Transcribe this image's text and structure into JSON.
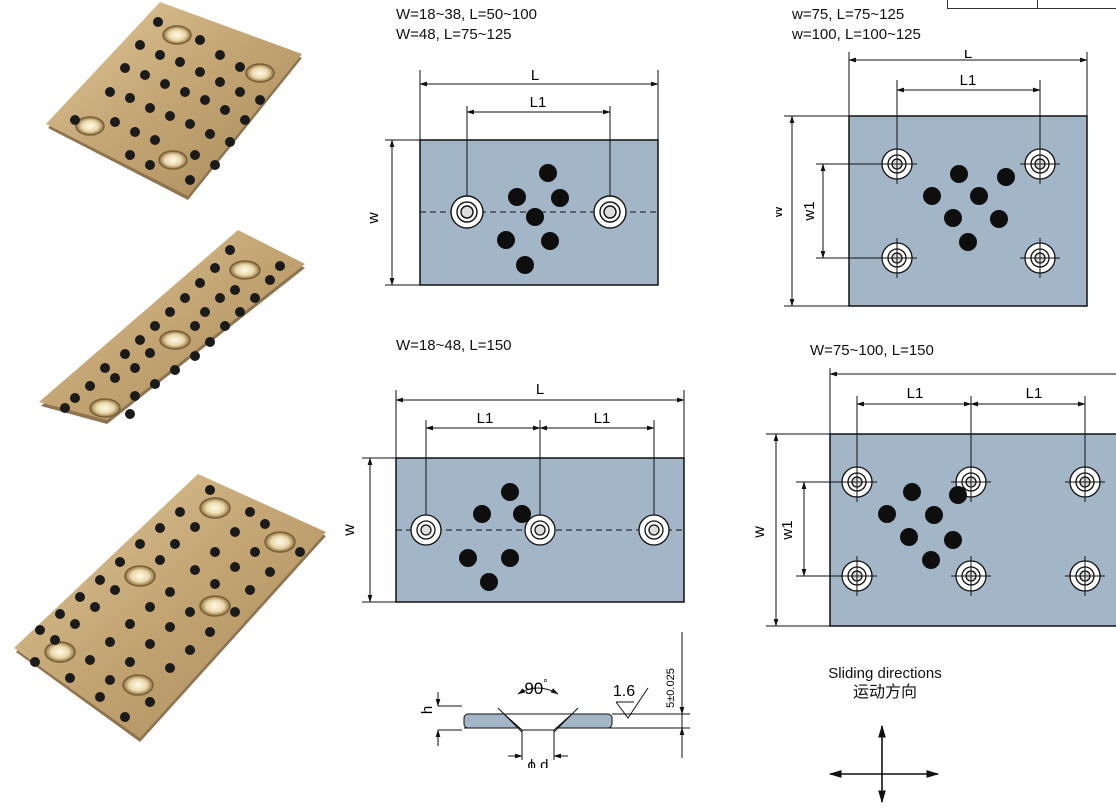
{
  "captions": {
    "tl_1": "W=18~38, L=50~100",
    "tl_2": "W=48, L=75~125",
    "tr_1": "w=75, L=75~125",
    "tr_2": "w=100, L=100~125",
    "ml": "W=18~48, L=150",
    "mr": "W=75~100, L=150"
  },
  "dims": {
    "L": "L",
    "L1": "L1",
    "W": "W",
    "w1": "w1",
    "h": "h",
    "angle": "90",
    "roughness": "1.6",
    "thickness": "5±0.025",
    "diameter": "ϕ d"
  },
  "sliding": {
    "line1": "Sliding directions",
    "line2": "运动方向"
  },
  "colors": {
    "plate_fill": "#a3b6c8",
    "bronze": "#c7a878",
    "graphite": "#1a1a1a"
  }
}
